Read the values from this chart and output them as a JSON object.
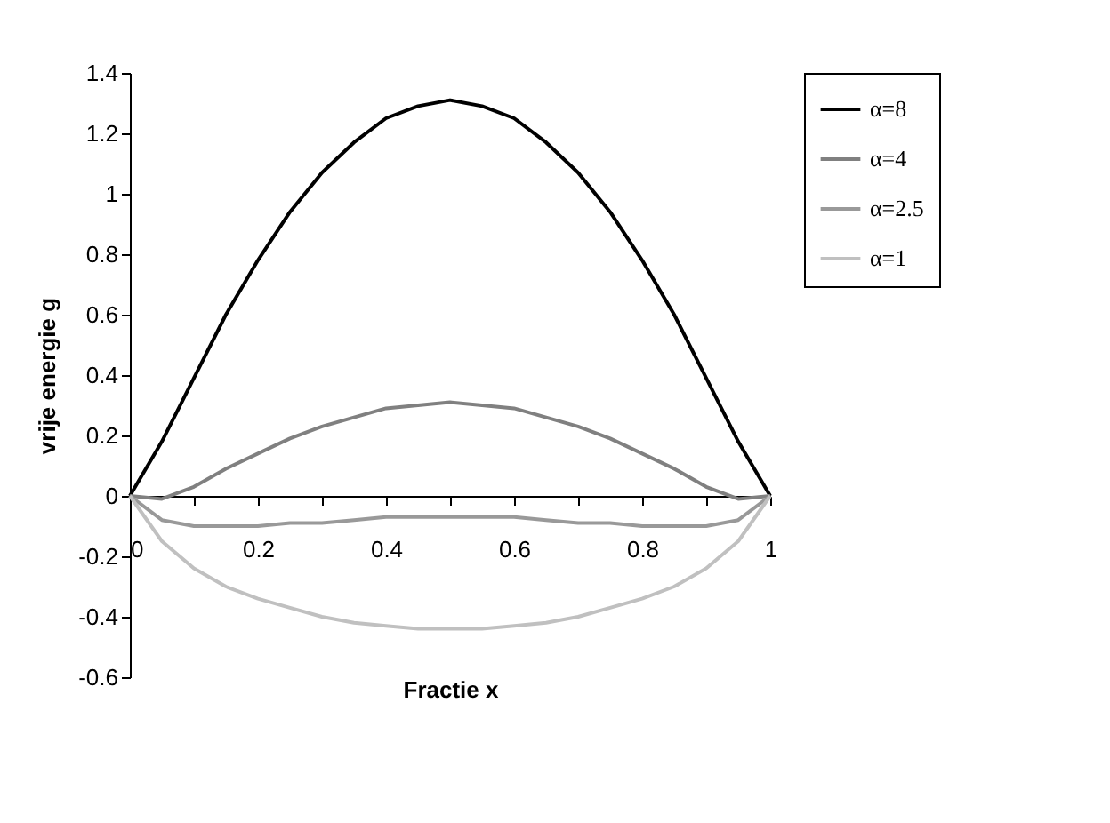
{
  "chart_data": {
    "type": "line",
    "xlabel": "Fractie x",
    "ylabel": "vrije energie g",
    "x": [
      0,
      0.05,
      0.1,
      0.15,
      0.2,
      0.25,
      0.3,
      0.35,
      0.4,
      0.45,
      0.5,
      0.55,
      0.6,
      0.65,
      0.7,
      0.75,
      0.8,
      0.85,
      0.9,
      0.95,
      1
    ],
    "series": [
      {
        "name": "α=8",
        "color": "#000000",
        "values": [
          0,
          0.18,
          0.39,
          0.6,
          0.78,
          0.94,
          1.07,
          1.17,
          1.25,
          1.29,
          1.31,
          1.29,
          1.25,
          1.17,
          1.07,
          0.94,
          0.78,
          0.6,
          0.39,
          0.18,
          0
        ]
      },
      {
        "name": "α=4",
        "color": "#808080",
        "values": [
          0,
          -0.01,
          0.03,
          0.09,
          0.14,
          0.19,
          0.23,
          0.26,
          0.29,
          0.3,
          0.31,
          0.3,
          0.29,
          0.26,
          0.23,
          0.19,
          0.14,
          0.09,
          0.03,
          -0.01,
          0
        ]
      },
      {
        "name": "α=2.5",
        "color": "#999999",
        "values": [
          0,
          -0.08,
          -0.1,
          -0.1,
          -0.1,
          -0.09,
          -0.09,
          -0.08,
          -0.07,
          -0.07,
          -0.07,
          -0.07,
          -0.07,
          -0.08,
          -0.09,
          -0.09,
          -0.1,
          -0.1,
          -0.1,
          -0.08,
          0
        ]
      },
      {
        "name": "α=1",
        "color": "#c0c0c0",
        "values": [
          0,
          -0.15,
          -0.24,
          -0.3,
          -0.34,
          -0.37,
          -0.4,
          -0.42,
          -0.43,
          -0.44,
          -0.44,
          -0.44,
          -0.43,
          -0.42,
          -0.4,
          -0.37,
          -0.34,
          -0.3,
          -0.24,
          -0.15,
          0
        ]
      }
    ],
    "xlim": [
      0,
      1
    ],
    "xticks": [
      0,
      {
        "value": 0.1,
        "label": null
      },
      0.2,
      {
        "value": 0.3,
        "label": null
      },
      0.4,
      {
        "value": 0.5,
        "label": null
      },
      0.6,
      {
        "value": 0.7,
        "label": null
      },
      0.8,
      {
        "value": 0.9,
        "label": null
      },
      1
    ],
    "ylim": [
      -0.6,
      1.4
    ],
    "yticks": [
      -0.6,
      -0.4,
      -0.2,
      0,
      0.2,
      0.4,
      0.6,
      0.8,
      1,
      1.2,
      1.4
    ],
    "grid": false,
    "legend": "right",
    "marker": "none",
    "line_style": "solid"
  }
}
